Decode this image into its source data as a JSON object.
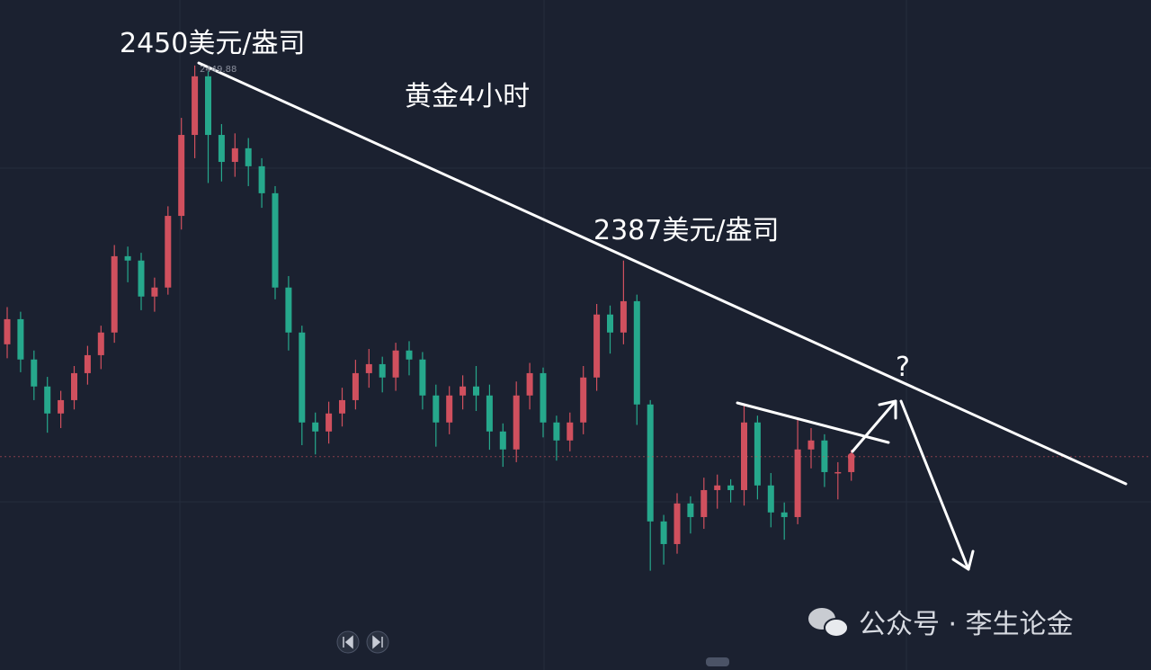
{
  "chart_data": {
    "type": "candlestick",
    "title": "黄金4小时",
    "annotations": [
      "2450美元/盎司",
      "2387美元/盎司",
      "?"
    ],
    "watermark": "公众号 · 李生论金",
    "up_color": "#d0505e",
    "down_color": "#26a88c",
    "ylim": [
      2255,
      2471
    ],
    "grid": true,
    "open": [
      2360.0,
      2368.1,
      2355.1,
      2346.4,
      2337.7,
      2342.0,
      2350.7,
      2356.5,
      2363.8,
      2388.4,
      2387.0,
      2375.4,
      2378.3,
      2401.4,
      2427.5,
      2446.4,
      2427.5,
      2418.8,
      2423.2,
      2417.4,
      2408.7,
      2378.3,
      2363.8,
      2334.8,
      2331.9,
      2337.7,
      2342.0,
      2350.7,
      2353.6,
      2349.3,
      2358.0,
      2355.1,
      2343.5,
      2334.8,
      2343.5,
      2346.4,
      2343.5,
      2331.9,
      2326.1,
      2343.5,
      2350.7,
      2334.8,
      2329.0,
      2334.8,
      2349.3,
      2369.6,
      2363.8,
      2373.9,
      2340.6,
      2302.9,
      2295.6,
      2308.7,
      2304.3,
      2313.0,
      2314.5,
      2313.0,
      2334.8,
      2314.5,
      2305.8,
      2304.3,
      2326.1,
      2329.0,
      2318.8,
      2318.8
    ],
    "high": [
      2372.0,
      2370.5,
      2358.0,
      2349.5,
      2345.0,
      2353.0,
      2359.5,
      2366.0,
      2392.0,
      2391.5,
      2389.5,
      2381.5,
      2404.5,
      2433.0,
      2449.88,
      2448.0,
      2431.0,
      2428.0,
      2426.5,
      2420.0,
      2411.0,
      2382.0,
      2366.0,
      2338.0,
      2341.5,
      2346.0,
      2355.0,
      2358.5,
      2356.0,
      2360.5,
      2361.0,
      2357.5,
      2347.0,
      2346.5,
      2350.0,
      2353.0,
      2347.0,
      2334.5,
      2348.0,
      2354.0,
      2352.5,
      2337.0,
      2338.0,
      2353.0,
      2373.0,
      2372.5,
      2387.0,
      2376.0,
      2342.0,
      2305.0,
      2312.0,
      2311.0,
      2317.0,
      2318.0,
      2316.5,
      2340.6,
      2337.0,
      2318.5,
      2309.0,
      2336.3,
      2333.0,
      2331.0,
      2322.0,
      2326.0
    ],
    "low": [
      2355.5,
      2351.0,
      2342.0,
      2331.5,
      2333.0,
      2339.0,
      2347.0,
      2352.0,
      2360.5,
      2380.0,
      2371.0,
      2370.5,
      2376.0,
      2397.0,
      2420.0,
      2412.0,
      2412.5,
      2414.0,
      2411.0,
      2404.0,
      2374.5,
      2358.0,
      2327.5,
      2324.5,
      2328.0,
      2333.5,
      2339.0,
      2346.0,
      2344.5,
      2345.0,
      2350.0,
      2339.0,
      2327.0,
      2331.0,
      2339.0,
      2338.5,
      2326.0,
      2320.5,
      2322.0,
      2339.0,
      2330.0,
      2322.5,
      2325.5,
      2331.0,
      2345.0,
      2357.0,
      2360.0,
      2334.0,
      2287.0,
      2289.0,
      2292.5,
      2299.0,
      2300.5,
      2307.0,
      2309.0,
      2308.0,
      2310.0,
      2301.0,
      2297.0,
      2302.0,
      2320.0,
      2314.0,
      2310.0,
      2316.0
    ],
    "close": [
      2368.1,
      2355.1,
      2346.4,
      2337.7,
      2342.0,
      2350.7,
      2356.5,
      2363.8,
      2388.4,
      2387.0,
      2375.4,
      2378.3,
      2401.4,
      2427.5,
      2446.4,
      2427.5,
      2418.8,
      2423.2,
      2417.4,
      2408.7,
      2378.3,
      2363.8,
      2334.8,
      2331.9,
      2337.7,
      2342.0,
      2350.7,
      2353.6,
      2349.3,
      2358.0,
      2355.1,
      2343.5,
      2334.8,
      2343.5,
      2346.4,
      2343.5,
      2331.9,
      2326.1,
      2343.5,
      2350.7,
      2334.8,
      2329.0,
      2334.8,
      2349.3,
      2369.6,
      2363.8,
      2373.9,
      2340.6,
      2302.9,
      2295.6,
      2308.7,
      2304.3,
      2313.0,
      2314.5,
      2313.0,
      2334.8,
      2314.5,
      2305.8,
      2304.3,
      2326.1,
      2329.0,
      2318.8,
      2318.8,
      2323.8
    ]
  }
}
